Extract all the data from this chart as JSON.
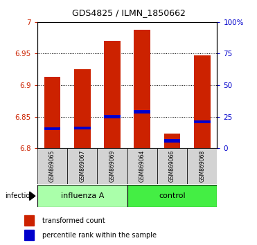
{
  "title": "GDS4825 / ILMN_1850662",
  "samples": [
    "GSM869065",
    "GSM869067",
    "GSM869069",
    "GSM869064",
    "GSM869066",
    "GSM869068"
  ],
  "bar_base": 6.8,
  "transformed_counts": [
    6.913,
    6.925,
    6.97,
    6.988,
    6.823,
    6.947
  ],
  "percentile_values": [
    6.831,
    6.832,
    6.85,
    6.858,
    6.812,
    6.842
  ],
  "ylim": [
    6.8,
    7.0
  ],
  "yticks": [
    6.8,
    6.85,
    6.9,
    6.95,
    7.0
  ],
  "ytick_labels": [
    "6.8",
    "6.85",
    "6.9",
    "6.95",
    "7"
  ],
  "right_ytick_labels": [
    "0",
    "25",
    "50",
    "75",
    "100%"
  ],
  "bar_color": "#CC2200",
  "percentile_color": "#0000CC",
  "bg_color": "#D3D3D3",
  "influenza_color": "#AAFFAA",
  "control_color": "#44EE44",
  "legend_items": [
    "transformed count",
    "percentile rank within the sample"
  ]
}
